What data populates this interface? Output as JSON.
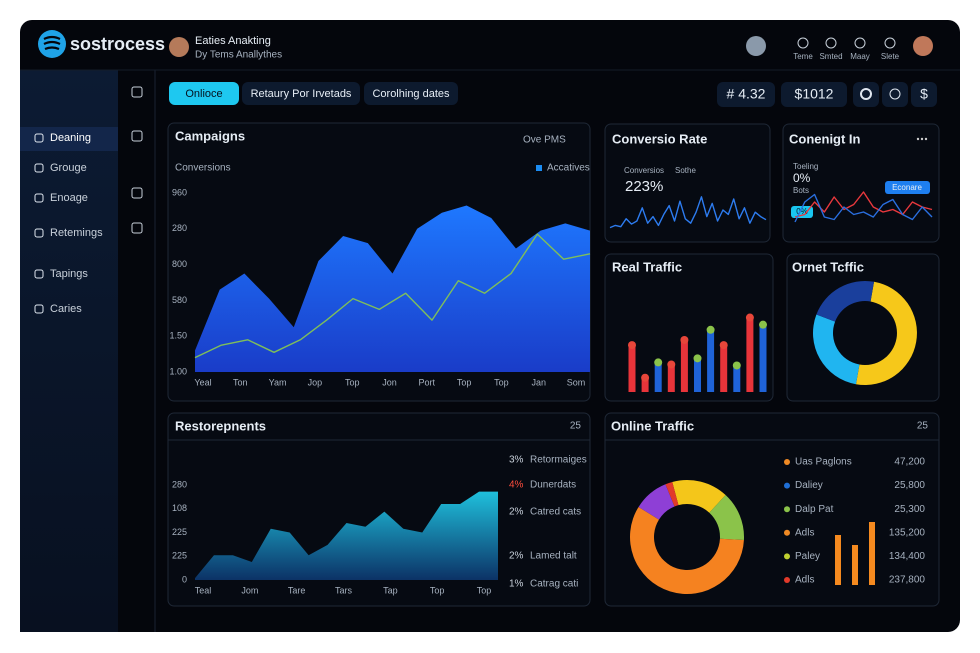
{
  "header": {
    "logo": "sostrocess",
    "user_name": "Eaties Anakting",
    "user_sub": "Dy Tems Anallythes",
    "nav": [
      "Teme",
      "Smted",
      "Maay",
      "Slete"
    ]
  },
  "sidebar": {
    "items": [
      "Deaning",
      "Grouge",
      "Enoage",
      "Retemings",
      "Tapings",
      "Caries"
    ],
    "active": 0
  },
  "toolbar": {
    "tabs": [
      "Onlioce",
      "Retaury Por Irvetads",
      "Corolhing dates"
    ],
    "active_tab": 0,
    "stats": [
      "# 4.32",
      "$1012"
    ],
    "currency": "$"
  },
  "panels": {
    "campaigns": {
      "title": "Campaigns",
      "menu": "Ove PMS",
      "subtitle": "Conversions",
      "chart": {
        "type": "area",
        "y_labels": [
          "960",
          "280",
          "800",
          "580",
          "1.50",
          "1.00"
        ],
        "x_labels": [
          "Yeal",
          "Ton",
          "Yam",
          "Jop",
          "Top",
          "Jon",
          "Port",
          "Top",
          "Top",
          "Jan",
          "Som"
        ],
        "ylim": [
          0,
          100
        ],
        "series": [
          {
            "name": "Accatives",
            "color": "#1b6cf2",
            "values": [
              12,
              46,
              55,
              41,
              25,
              62,
              76,
              72,
              55,
              80,
              89,
              93,
              86,
              69,
              79,
              83,
              79
            ]
          },
          {
            "color": "#7fbf5a",
            "values": [
              8,
              15,
              18,
              11,
              18,
              29,
              41,
              35,
              44,
              29,
              51,
              44,
              55,
              77,
              63,
              66
            ]
          }
        ]
      }
    },
    "conversion": {
      "title": "Conversio Rate",
      "label": "Conversios",
      "label2": "Sothe",
      "value": "223%",
      "chart": {
        "type": "line",
        "ylim": [
          0,
          100
        ],
        "series": [
          {
            "color": "#2d7cf0",
            "values": [
              10,
              15,
              12,
              30,
              18,
              25,
              55,
              20,
              35,
              15,
              40,
              60,
              25,
              70,
              30,
              20,
              45,
              80,
              35,
              65,
              25,
              50,
              40,
              75,
              30,
              55,
              20,
              45,
              35,
              28
            ]
          }
        ]
      }
    },
    "coneg": {
      "title": "Conenigt In",
      "label": "Toeling",
      "value": "0%",
      "label2": "Bots",
      "badge": "Econare",
      "badge2": "0%",
      "chart": {
        "type": "line",
        "ylim": [
          0,
          100
        ],
        "series": [
          {
            "color": "#e8383d",
            "values": [
              30,
              35,
              60,
              40,
              70,
              45,
              55,
              80,
              50,
              40,
              45,
              35,
              60,
              50,
              45
            ]
          },
          {
            "color": "#2a6fe0",
            "values": [
              20,
              60,
              75,
              30,
              25,
              50,
              35,
              40,
              30,
              55,
              65,
              35,
              25,
              50,
              30
            ]
          }
        ]
      }
    },
    "real": {
      "title": "Real Traffic",
      "chart": {
        "type": "bar",
        "ylim": [
          0,
          100
        ],
        "values": [
          46,
          14,
          29,
          27,
          51,
          33,
          61,
          46,
          26,
          73,
          66
        ],
        "colors": [
          "#e8343a",
          "#e8343a",
          "#1f63d8",
          "#e8343a",
          "#e8343a",
          "#1f63d8",
          "#1f63d8",
          "#e8343a",
          "#1f63d8",
          "#e8343a",
          "#1f63d8"
        ]
      }
    },
    "ornet": {
      "title": "Ornet Tcffic",
      "chart": {
        "type": "pie",
        "start_angle": 10,
        "values": [
          50,
          28,
          22
        ],
        "colors": [
          "#f6c81a",
          "#20b5f0",
          "#1a3f9c"
        ]
      }
    },
    "rest": {
      "title": "Restorepnents",
      "count": "25",
      "chart": {
        "type": "area",
        "y_labels": [
          "280",
          "108",
          "225",
          "225",
          "0"
        ],
        "x_labels": [
          "Teal",
          "Jom",
          "Tare",
          "Tars",
          "Tap",
          "Top",
          "Top"
        ],
        "ylim": [
          0,
          100
        ],
        "series": [
          {
            "color": "#1fb8d8",
            "values": [
              2,
              26,
              26,
              19,
              54,
              50,
              26,
              37,
              60,
              56,
              72,
              54,
              50,
              80,
              80,
              93,
              93
            ]
          }
        ]
      },
      "legend": [
        {
          "pct": "3%",
          "label": "Retormaiges",
          "color": "#c8d0da"
        },
        {
          "pct": "4%",
          "label": "Dunerdats",
          "color": "#ff4d3d"
        },
        {
          "pct": "2%",
          "label": "Catred cats",
          "color": "#c8d0da"
        },
        {
          "pct": "2%",
          "label": "Lamed talt",
          "color": "#c8d0da"
        },
        {
          "pct": "1%",
          "label": "Catrag cati",
          "color": "#c8d0da"
        }
      ]
    },
    "online": {
      "title": "Online Traffic",
      "count": "25",
      "chart": {
        "type": "pie",
        "start_angle": -15,
        "values": [
          16,
          14,
          58,
          10,
          2
        ],
        "colors": [
          "#f4c61a",
          "#8bc34a",
          "#f58220",
          "#8e3fd6",
          "#e23a2a"
        ]
      },
      "legend": [
        {
          "label": "Uas Paglons",
          "value": "47,200",
          "color": "#f08a24"
        },
        {
          "label": "Daliey",
          "value": "25,800",
          "color": "#1f6fd6"
        },
        {
          "label": "Dalp Pat",
          "value": "25,300",
          "color": "#8bc34a"
        },
        {
          "label": "Adls",
          "value": "135,200",
          "color": "#f08a24"
        },
        {
          "label": "Paley",
          "value": "134,400",
          "color": "#c0d030"
        },
        {
          "label": "Adls",
          "value": "237,800",
          "color": "#e23a2a"
        }
      ],
      "bars": {
        "type": "bar",
        "ylim": [
          0,
          100
        ],
        "values": [
          50,
          40,
          63
        ],
        "color": "#f58a1f"
      }
    }
  }
}
